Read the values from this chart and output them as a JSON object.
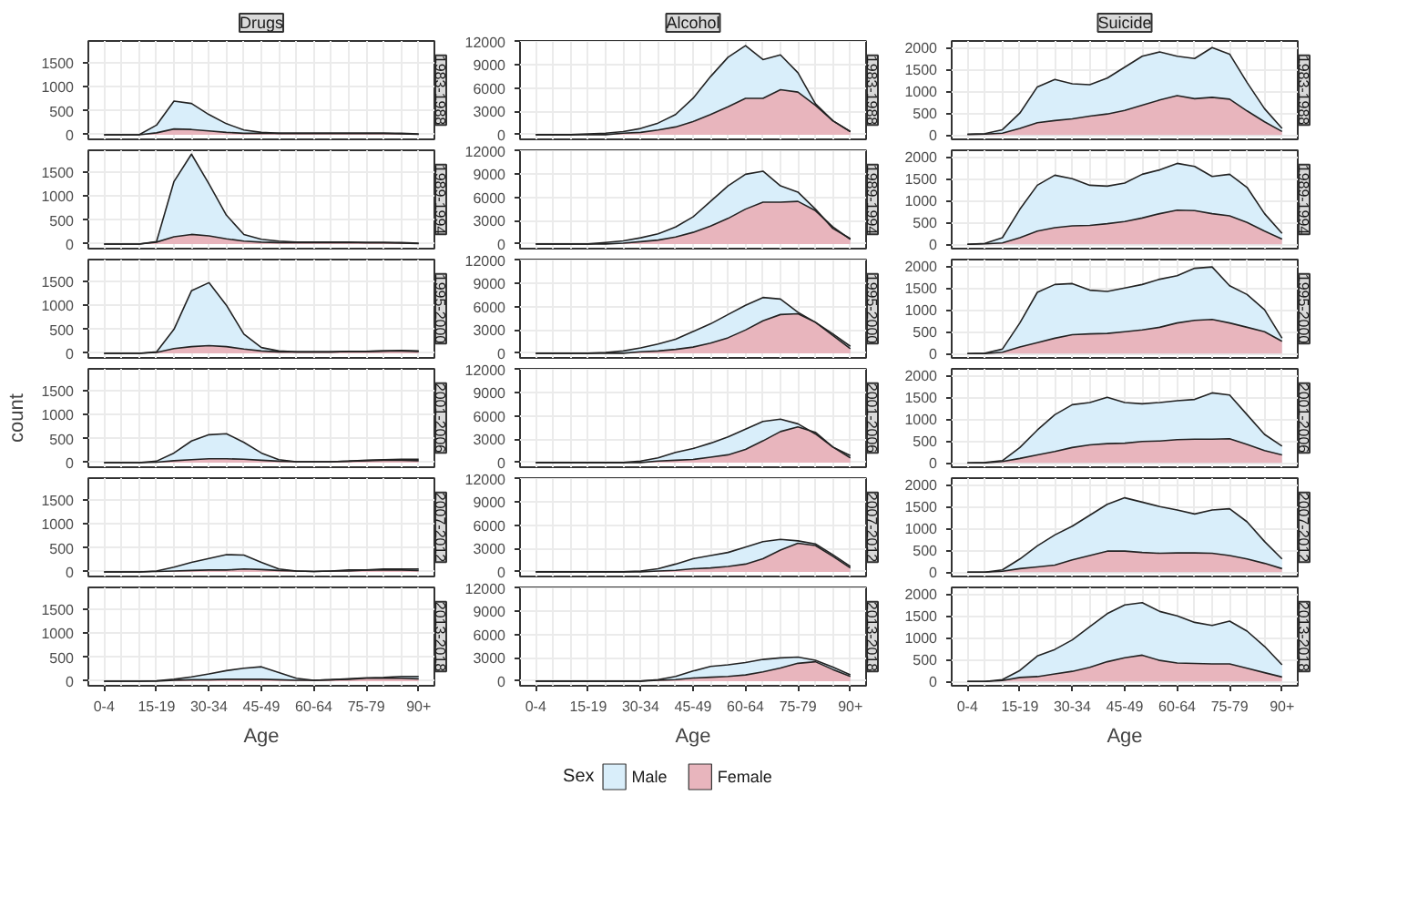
{
  "chart_data": [
    {
      "type": "area",
      "title": "Drugs",
      "subtitle": "1983-1988",
      "categories": [
        null,
        null,
        null,
        null,
        null,
        null,
        null,
        null,
        null,
        null,
        null,
        null,
        null,
        null,
        null,
        null,
        null,
        null,
        null
      ],
      "ylim": [
        -95,
        1950
      ],
      "yticks": [
        0,
        500,
        1000,
        1500
      ],
      "grid": true,
      "tick_labels": "y",
      "series": [
        {
          "color": "#d9eefa",
          "values": [
            0,
            0,
            0,
            200,
            700,
            650,
            420,
            230,
            100,
            50,
            30,
            30,
            30,
            30,
            30,
            30,
            30,
            30,
            20
          ]
        },
        {
          "color": "#e8b5bd",
          "values": [
            0,
            0,
            0,
            40,
            120,
            110,
            80,
            50,
            30,
            30,
            30,
            30,
            30,
            30,
            30,
            30,
            30,
            20,
            10
          ]
        }
      ]
    },
    {
      "type": "area",
      "title": "Alcohol",
      "subtitle": "1983-1988",
      "categories": [
        null,
        null,
        null,
        null,
        null,
        null,
        null,
        null,
        null,
        null,
        null,
        null,
        null,
        null,
        null,
        null,
        null,
        null,
        null
      ],
      "ylim": [
        -600,
        12100
      ],
      "yticks": [
        0,
        3000,
        6000,
        9000,
        12000
      ],
      "grid": true,
      "tick_labels": "y",
      "series": [
        {
          "color": "#d9eefa",
          "values": [
            0,
            0,
            0,
            100,
            200,
            400,
            800,
            1500,
            2600,
            4700,
            7500,
            10000,
            11500,
            9700,
            10300,
            8000,
            4000,
            1800,
            400
          ]
        },
        {
          "color": "#e8b5bd",
          "values": [
            0,
            0,
            0,
            0,
            0,
            200,
            300,
            600,
            1000,
            1700,
            2600,
            3600,
            4700,
            4700,
            5800,
            5500,
            3800,
            1800,
            400
          ]
        }
      ]
    },
    {
      "type": "area",
      "title": "Suicide",
      "subtitle": "1983-1988",
      "categories": [
        null,
        null,
        null,
        null,
        null,
        null,
        null,
        null,
        null,
        null,
        null,
        null,
        null,
        null,
        null,
        null,
        null,
        null,
        null
      ],
      "ylim": [
        -100,
        2150
      ],
      "yticks": [
        0,
        500,
        1000,
        1500,
        2000
      ],
      "grid": true,
      "tick_labels": "y",
      "series": [
        {
          "color": "#d9eefa",
          "values": [
            20,
            30,
            120,
            500,
            1100,
            1270,
            1170,
            1150,
            1300,
            1550,
            1800,
            1900,
            1800,
            1750,
            2000,
            1850,
            1200,
            600,
            150
          ]
        },
        {
          "color": "#e8b5bd",
          "values": [
            10,
            20,
            40,
            150,
            280,
            330,
            370,
            430,
            480,
            560,
            680,
            800,
            900,
            830,
            860,
            820,
            550,
            300,
            80
          ]
        }
      ]
    },
    {
      "type": "area",
      "subtitle": "1989-1994",
      "categories": [
        null,
        null,
        null,
        null,
        null,
        null,
        null,
        null,
        null,
        null,
        null,
        null,
        null,
        null,
        null,
        null,
        null,
        null,
        null
      ],
      "ylim": [
        -95,
        1950
      ],
      "yticks": [
        0,
        500,
        1000,
        1500
      ],
      "grid": true,
      "tick_labels": "y",
      "series": [
        {
          "color": "#d9eefa",
          "values": [
            0,
            0,
            0,
            50,
            1300,
            1870,
            1250,
            600,
            200,
            100,
            60,
            40,
            40,
            40,
            40,
            30,
            30,
            30,
            20
          ]
        },
        {
          "color": "#e8b5bd",
          "values": [
            0,
            0,
            0,
            40,
            150,
            200,
            170,
            110,
            60,
            40,
            30,
            30,
            30,
            30,
            30,
            30,
            30,
            20,
            10
          ]
        }
      ]
    },
    {
      "type": "area",
      "subtitle": "1989-1994",
      "categories": [
        null,
        null,
        null,
        null,
        null,
        null,
        null,
        null,
        null,
        null,
        null,
        null,
        null,
        null,
        null,
        null,
        null,
        null,
        null
      ],
      "ylim": [
        -600,
        12100
      ],
      "yticks": [
        0,
        3000,
        6000,
        9000,
        12000
      ],
      "grid": true,
      "tick_labels": "y",
      "series": [
        {
          "color": "#d9eefa",
          "values": [
            0,
            0,
            0,
            0,
            200,
            400,
            800,
            1300,
            2200,
            3500,
            5500,
            7500,
            9000,
            9400,
            7500,
            6700,
            4500,
            2000,
            700
          ]
        },
        {
          "color": "#e8b5bd",
          "values": [
            0,
            0,
            0,
            0,
            0,
            100,
            300,
            500,
            900,
            1500,
            2300,
            3300,
            4500,
            5400,
            5400,
            5500,
            4300,
            2200,
            600
          ]
        }
      ]
    },
    {
      "type": "area",
      "subtitle": "1989-1994",
      "categories": [
        null,
        null,
        null,
        null,
        null,
        null,
        null,
        null,
        null,
        null,
        null,
        null,
        null,
        null,
        null,
        null,
        null,
        null,
        null
      ],
      "ylim": [
        -100,
        2150
      ],
      "yticks": [
        0,
        500,
        1000,
        1500,
        2000
      ],
      "grid": true,
      "tick_labels": "y",
      "series": [
        {
          "color": "#d9eefa",
          "values": [
            0,
            20,
            150,
            800,
            1350,
            1580,
            1500,
            1350,
            1330,
            1400,
            1600,
            1700,
            1850,
            1780,
            1550,
            1600,
            1300,
            700,
            250
          ]
        },
        {
          "color": "#e8b5bd",
          "values": [
            0,
            10,
            30,
            150,
            300,
            380,
            420,
            430,
            470,
            520,
            600,
            700,
            780,
            770,
            700,
            650,
            500,
            300,
            120
          ]
        }
      ]
    },
    {
      "type": "area",
      "subtitle": "1995-2000",
      "categories": [
        null,
        null,
        null,
        null,
        null,
        null,
        null,
        null,
        null,
        null,
        null,
        null,
        null,
        null,
        null,
        null,
        null,
        null,
        null
      ],
      "ylim": [
        -95,
        1950
      ],
      "yticks": [
        0,
        500,
        1000,
        1500
      ],
      "grid": true,
      "tick_labels": "y",
      "series": [
        {
          "color": "#d9eefa",
          "values": [
            0,
            0,
            0,
            30,
            500,
            1300,
            1470,
            1000,
            400,
            120,
            50,
            30,
            30,
            30,
            40,
            40,
            50,
            60,
            50
          ]
        },
        {
          "color": "#e8b5bd",
          "values": [
            0,
            0,
            0,
            20,
            100,
            140,
            160,
            140,
            90,
            50,
            30,
            30,
            30,
            30,
            40,
            40,
            50,
            50,
            40
          ]
        }
      ]
    },
    {
      "type": "area",
      "subtitle": "1995-2000",
      "categories": [
        null,
        null,
        null,
        null,
        null,
        null,
        null,
        null,
        null,
        null,
        null,
        null,
        null,
        null,
        null,
        null,
        null,
        null,
        null
      ],
      "ylim": [
        -600,
        12100
      ],
      "yticks": [
        0,
        3000,
        6000,
        9000,
        12000
      ],
      "grid": true,
      "tick_labels": "y",
      "series": [
        {
          "color": "#d9eefa",
          "values": [
            0,
            0,
            0,
            0,
            100,
            300,
            700,
            1200,
            1800,
            2800,
            3800,
            5000,
            6200,
            7200,
            7000,
            5300,
            4000,
            2500,
            900
          ]
        },
        {
          "color": "#e8b5bd",
          "values": [
            0,
            0,
            0,
            0,
            0,
            0,
            200,
            300,
            500,
            800,
            1300,
            2000,
            3000,
            4200,
            5000,
            5100,
            4000,
            2300,
            600
          ]
        }
      ]
    },
    {
      "type": "area",
      "subtitle": "1995-2000",
      "categories": [
        null,
        null,
        null,
        null,
        null,
        null,
        null,
        null,
        null,
        null,
        null,
        null,
        null,
        null,
        null,
        null,
        null,
        null,
        null
      ],
      "ylim": [
        -100,
        2150
      ],
      "yticks": [
        0,
        500,
        1000,
        1500,
        2000
      ],
      "grid": true,
      "tick_labels": "y",
      "series": [
        {
          "color": "#d9eefa",
          "values": [
            0,
            10,
            100,
            700,
            1400,
            1580,
            1600,
            1450,
            1420,
            1500,
            1580,
            1700,
            1780,
            1950,
            1980,
            1550,
            1350,
            1000,
            350
          ]
        },
        {
          "color": "#e8b5bd",
          "values": [
            0,
            0,
            30,
            150,
            250,
            350,
            430,
            450,
            460,
            500,
            540,
            600,
            700,
            760,
            780,
            700,
            600,
            500,
            280
          ]
        }
      ]
    },
    {
      "type": "area",
      "subtitle": "2001-2006",
      "ylabel": "count",
      "categories": [
        null,
        null,
        null,
        null,
        null,
        null,
        null,
        null,
        null,
        null,
        null,
        null,
        null,
        null,
        null,
        null,
        null,
        null,
        null
      ],
      "ylim": [
        -95,
        1950
      ],
      "yticks": [
        0,
        500,
        1000,
        1500
      ],
      "grid": true,
      "tick_labels": "y",
      "series": [
        {
          "color": "#d9eefa",
          "values": [
            0,
            0,
            0,
            30,
            200,
            450,
            580,
            600,
            420,
            200,
            60,
            20,
            20,
            20,
            30,
            50,
            60,
            70,
            70
          ]
        },
        {
          "color": "#e8b5bd",
          "values": [
            0,
            0,
            0,
            10,
            40,
            60,
            80,
            80,
            70,
            50,
            30,
            20,
            20,
            20,
            30,
            40,
            50,
            50,
            40
          ]
        }
      ]
    },
    {
      "type": "area",
      "subtitle": "2001-2006",
      "categories": [
        null,
        null,
        null,
        null,
        null,
        null,
        null,
        null,
        null,
        null,
        null,
        null,
        null,
        null,
        null,
        null,
        null,
        null,
        null
      ],
      "ylim": [
        -600,
        12100
      ],
      "yticks": [
        0,
        3000,
        6000,
        9000,
        12000
      ],
      "grid": true,
      "tick_labels": "y",
      "series": [
        {
          "color": "#d9eefa",
          "values": [
            0,
            0,
            0,
            0,
            0,
            0,
            200,
            600,
            1300,
            1800,
            2500,
            3300,
            4300,
            5300,
            5600,
            5000,
            3700,
            2000,
            900
          ]
        },
        {
          "color": "#e8b5bd",
          "values": [
            0,
            0,
            0,
            0,
            0,
            0,
            0,
            200,
            300,
            400,
            700,
            1000,
            1700,
            2800,
            4000,
            4600,
            3900,
            2000,
            600
          ]
        }
      ]
    },
    {
      "type": "area",
      "subtitle": "2001-2006",
      "categories": [
        null,
        null,
        null,
        null,
        null,
        null,
        null,
        null,
        null,
        null,
        null,
        null,
        null,
        null,
        null,
        null,
        null,
        null,
        null
      ],
      "ylim": [
        -100,
        2150
      ],
      "yticks": [
        0,
        500,
        1000,
        1500,
        2000
      ],
      "grid": true,
      "tick_labels": "y",
      "series": [
        {
          "color": "#d9eefa",
          "values": [
            0,
            10,
            50,
            350,
            750,
            1100,
            1330,
            1380,
            1500,
            1380,
            1350,
            1380,
            1420,
            1450,
            1600,
            1550,
            1100,
            650,
            380
          ]
        },
        {
          "color": "#e8b5bd",
          "values": [
            0,
            0,
            30,
            100,
            180,
            260,
            350,
            410,
            440,
            450,
            490,
            500,
            530,
            540,
            540,
            550,
            420,
            280,
            180
          ]
        }
      ]
    },
    {
      "type": "area",
      "subtitle": "2007-2012",
      "categories": [
        null,
        null,
        null,
        null,
        null,
        null,
        null,
        null,
        null,
        null,
        null,
        null,
        null,
        null,
        null,
        null,
        null,
        null,
        null
      ],
      "ylim": [
        -95,
        1950
      ],
      "yticks": [
        0,
        500,
        1000,
        1500
      ],
      "grid": true,
      "tick_labels": "y",
      "series": [
        {
          "color": "#d9eefa",
          "values": [
            0,
            0,
            0,
            20,
            100,
            200,
            280,
            360,
            350,
            200,
            60,
            20,
            10,
            20,
            40,
            40,
            60,
            60,
            60
          ]
        },
        {
          "color": "#e8b5bd",
          "values": [
            0,
            0,
            0,
            10,
            20,
            30,
            40,
            40,
            60,
            50,
            30,
            20,
            10,
            20,
            20,
            40,
            40,
            40,
            30
          ]
        }
      ]
    },
    {
      "type": "area",
      "subtitle": "2007-2012",
      "categories": [
        null,
        null,
        null,
        null,
        null,
        null,
        null,
        null,
        null,
        null,
        null,
        null,
        null,
        null,
        null,
        null,
        null,
        null,
        null
      ],
      "ylim": [
        -600,
        12100
      ],
      "yticks": [
        0,
        3000,
        6000,
        9000,
        12000
      ],
      "grid": true,
      "tick_labels": "y",
      "series": [
        {
          "color": "#d9eefa",
          "values": [
            0,
            0,
            0,
            0,
            0,
            0,
            100,
            400,
            1000,
            1700,
            2100,
            2500,
            3200,
            3900,
            4200,
            4000,
            3600,
            2200,
            700
          ]
        },
        {
          "color": "#e8b5bd",
          "values": [
            0,
            0,
            0,
            0,
            0,
            0,
            0,
            100,
            200,
            400,
            500,
            700,
            1000,
            1700,
            2800,
            3700,
            3400,
            2000,
            500
          ]
        }
      ]
    },
    {
      "type": "area",
      "subtitle": "2007-2012",
      "categories": [
        null,
        null,
        null,
        null,
        null,
        null,
        null,
        null,
        null,
        null,
        null,
        null,
        null,
        null,
        null,
        null,
        null,
        null,
        null
      ],
      "ylim": [
        -100,
        2150
      ],
      "yticks": [
        0,
        500,
        1000,
        1500,
        2000
      ],
      "grid": true,
      "tick_labels": "y",
      "series": [
        {
          "color": "#d9eefa",
          "values": [
            0,
            0,
            50,
            300,
            600,
            850,
            1050,
            1300,
            1550,
            1700,
            1600,
            1500,
            1420,
            1330,
            1420,
            1450,
            1150,
            700,
            300
          ]
        },
        {
          "color": "#e8b5bd",
          "values": [
            0,
            0,
            20,
            80,
            120,
            160,
            280,
            380,
            480,
            480,
            450,
            430,
            440,
            440,
            430,
            380,
            300,
            200,
            80
          ]
        }
      ]
    },
    {
      "type": "area",
      "subtitle": "2013-2018",
      "xlabel": "Age",
      "categories": [
        "0-4",
        null,
        null,
        "15-19",
        null,
        null,
        "30-34",
        null,
        null,
        "45-49",
        null,
        null,
        "60-64",
        null,
        null,
        "75-79",
        null,
        null,
        "90+"
      ],
      "ylim": [
        -95,
        1950
      ],
      "yticks": [
        0,
        500,
        1000,
        1500
      ],
      "grid": true,
      "series": [
        {
          "color": "#d9eefa",
          "values": [
            0,
            0,
            0,
            10,
            40,
            90,
            150,
            220,
            270,
            300,
            180,
            60,
            20,
            30,
            50,
            70,
            80,
            100,
            100
          ]
        },
        {
          "color": "#e8b5bd",
          "values": [
            0,
            0,
            0,
            0,
            20,
            30,
            30,
            40,
            40,
            40,
            30,
            20,
            20,
            30,
            40,
            60,
            60,
            60,
            50
          ]
        }
      ]
    },
    {
      "type": "area",
      "subtitle": "2013-2018",
      "xlabel": "Age",
      "legend": "bottom",
      "legend_title": "Sex",
      "categories": [
        "0-4",
        null,
        null,
        "15-19",
        null,
        null,
        "30-34",
        null,
        null,
        "45-49",
        null,
        null,
        "60-64",
        null,
        null,
        "75-79",
        null,
        null,
        "90+"
      ],
      "ylim": [
        -600,
        12100
      ],
      "yticks": [
        0,
        3000,
        6000,
        9000,
        12000
      ],
      "grid": true,
      "series": [
        {
          "name": "Male",
          "color": "#d9eefa",
          "values": [
            0,
            0,
            0,
            0,
            0,
            0,
            0,
            200,
            600,
            1300,
            1900,
            2100,
            2400,
            2800,
            3000,
            3100,
            2700,
            1800,
            800
          ]
        },
        {
          "name": "Female",
          "color": "#e8b5bd",
          "values": [
            0,
            0,
            0,
            0,
            0,
            0,
            0,
            100,
            200,
            400,
            500,
            600,
            800,
            1200,
            1700,
            2300,
            2500,
            1500,
            600
          ]
        }
      ]
    },
    {
      "type": "area",
      "subtitle": "2013-2018",
      "xlabel": "Age",
      "categories": [
        "0-4",
        null,
        null,
        "15-19",
        null,
        null,
        "30-34",
        null,
        null,
        "45-49",
        null,
        null,
        "60-64",
        null,
        null,
        "75-79",
        null,
        null,
        "90+"
      ],
      "ylim": [
        -100,
        2150
      ],
      "yticks": [
        0,
        500,
        1000,
        1500,
        2000
      ],
      "grid": true,
      "series": [
        {
          "color": "#d9eefa",
          "values": [
            0,
            0,
            40,
            250,
            580,
            730,
            950,
            1250,
            1550,
            1750,
            1800,
            1600,
            1500,
            1350,
            1280,
            1380,
            1150,
            800,
            380
          ]
        },
        {
          "color": "#e8b5bd",
          "values": [
            0,
            0,
            20,
            90,
            110,
            170,
            230,
            320,
            450,
            540,
            600,
            480,
            420,
            410,
            400,
            400,
            300,
            200,
            100
          ]
        }
      ]
    }
  ]
}
